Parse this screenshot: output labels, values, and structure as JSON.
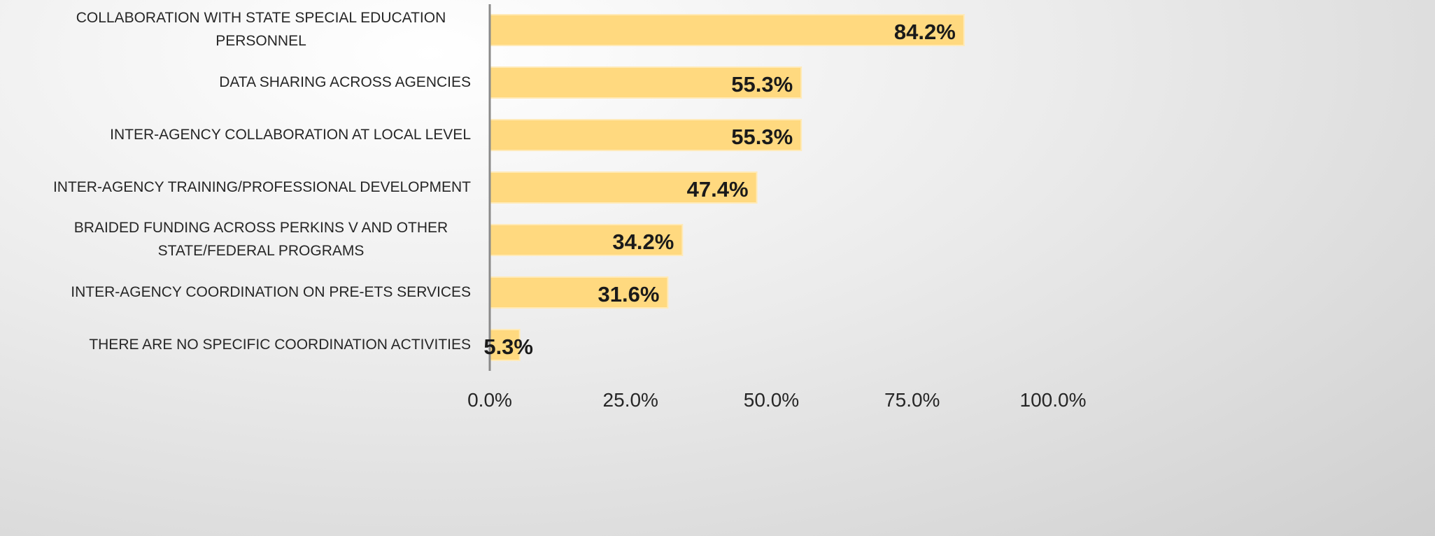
{
  "chart_data": {
    "type": "barh",
    "categories": [
      "COLLABORATION WITH STATE SPECIAL EDUCATION PERSONNEL",
      "DATA SHARING ACROSS AGENCIES",
      "INTER-AGENCY COLLABORATION AT LOCAL LEVEL",
      "INTER-AGENCY TRAINING/PROFESSIONAL DEVELOPMENT",
      "BRAIDED FUNDING ACROSS PERKINS V AND OTHER STATE/FEDERAL PROGRAMS",
      "INTER-AGENCY COORDINATION ON PRE-ETS SERVICES",
      "THERE ARE NO SPECIFIC COORDINATION ACTIVITIES"
    ],
    "values": [
      84.2,
      55.3,
      55.3,
      47.4,
      34.2,
      31.6,
      5.3
    ],
    "value_labels": [
      "84.2%",
      "55.3%",
      "55.3%",
      "47.4%",
      "34.2%",
      "31.6%",
      "5.3%"
    ],
    "color": "#ffd97f",
    "xlim": [
      0,
      100
    ],
    "xticks": [
      {
        "value": 0,
        "label": "0.0%"
      },
      {
        "value": 25,
        "label": "25.0%"
      },
      {
        "value": 50,
        "label": "50.0%"
      },
      {
        "value": 75,
        "label": "75.0%"
      },
      {
        "value": 100,
        "label": "100.0%"
      }
    ],
    "grid": false
  }
}
